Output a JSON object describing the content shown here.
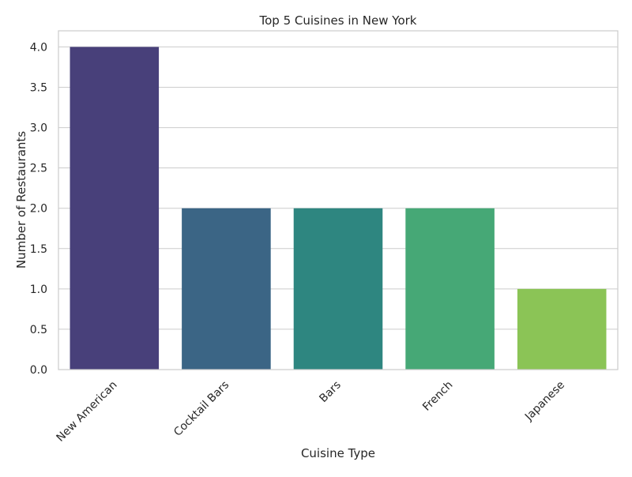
{
  "chart_data": {
    "type": "bar",
    "title": "Top 5 Cuisines in New York",
    "xlabel": "Cuisine Type",
    "ylabel": "Number of Restaurants",
    "categories": [
      "New American",
      "Cocktail Bars",
      "Bars",
      "French",
      "Japanese"
    ],
    "values": [
      4,
      2,
      2,
      2,
      1
    ],
    "colors": [
      "#48407a",
      "#3b6585",
      "#2e8680",
      "#46a876",
      "#8bc456"
    ],
    "ylim": [
      0,
      4.2
    ],
    "yticks": [
      "0.0",
      "0.5",
      "1.0",
      "1.5",
      "2.0",
      "2.5",
      "3.0",
      "3.5",
      "4.0"
    ],
    "grid": "horizontal",
    "legend": "none"
  }
}
